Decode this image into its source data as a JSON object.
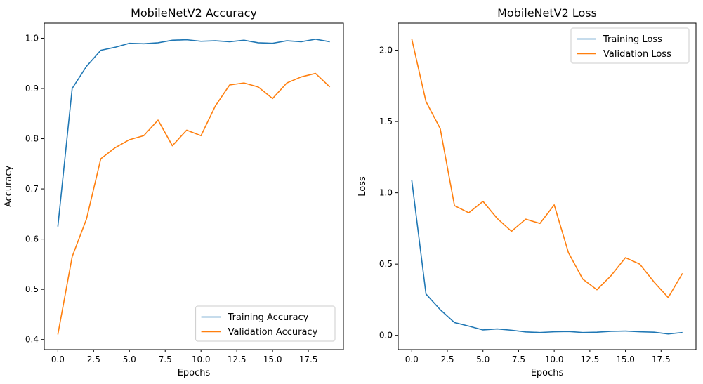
{
  "chart_data": [
    {
      "type": "line",
      "title": "MobileNetV2 Accuracy",
      "xlabel": "Epochs",
      "ylabel": "Accuracy",
      "xlim": [
        -0.95,
        19.95
      ],
      "ylim": [
        0.38,
        1.03
      ],
      "xticks": [
        0,
        2.5,
        5,
        7.5,
        10,
        12.5,
        15,
        17.5
      ],
      "xtick_labels": [
        "0.0",
        "2.5",
        "5.0",
        "7.5",
        "10.0",
        "12.5",
        "15.0",
        "17.5"
      ],
      "yticks": [
        0.4,
        0.5,
        0.6,
        0.7,
        0.8,
        0.9,
        1.0
      ],
      "ytick_labels": [
        "0.4",
        "0.5",
        "0.6",
        "0.7",
        "0.8",
        "0.9",
        "1.0"
      ],
      "legend_position": "lower right",
      "x": [
        0,
        1,
        2,
        3,
        4,
        5,
        6,
        7,
        8,
        9,
        10,
        11,
        12,
        13,
        14,
        15,
        16,
        17,
        18,
        19
      ],
      "series": [
        {
          "name": "Training Accuracy",
          "color": "#1f77b4",
          "values": [
            0.625,
            0.9,
            0.944,
            0.976,
            0.982,
            0.99,
            0.989,
            0.991,
            0.996,
            0.997,
            0.994,
            0.995,
            0.993,
            0.996,
            0.991,
            0.99,
            0.995,
            0.993,
            0.998,
            0.993
          ]
        },
        {
          "name": "Validation Accuracy",
          "color": "#ff7f0e",
          "values": [
            0.41,
            0.565,
            0.64,
            0.76,
            0.782,
            0.798,
            0.806,
            0.837,
            0.786,
            0.817,
            0.806,
            0.865,
            0.907,
            0.911,
            0.903,
            0.88,
            0.911,
            0.923,
            0.93,
            0.903
          ]
        }
      ]
    },
    {
      "type": "line",
      "title": "MobileNetV2 Loss",
      "xlabel": "Epochs",
      "ylabel": "Loss",
      "xlim": [
        -0.95,
        19.95
      ],
      "ylim": [
        -0.1,
        2.19
      ],
      "xticks": [
        0,
        2.5,
        5,
        7.5,
        10,
        12.5,
        15,
        17.5
      ],
      "xtick_labels": [
        "0.0",
        "2.5",
        "5.0",
        "7.5",
        "10.0",
        "12.5",
        "15.0",
        "17.5"
      ],
      "yticks": [
        0,
        0.5,
        1.0,
        1.5,
        2.0
      ],
      "ytick_labels": [
        "0.0",
        "0.5",
        "1.0",
        "1.5",
        "2.0"
      ],
      "legend_position": "upper right",
      "x": [
        0,
        1,
        2,
        3,
        4,
        5,
        6,
        7,
        8,
        9,
        10,
        11,
        12,
        13,
        14,
        15,
        16,
        17,
        18,
        19
      ],
      "series": [
        {
          "name": "Training Loss",
          "color": "#1f77b4",
          "values": [
            1.09,
            0.29,
            0.18,
            0.09,
            0.065,
            0.038,
            0.045,
            0.036,
            0.024,
            0.02,
            0.025,
            0.027,
            0.02,
            0.022,
            0.028,
            0.03,
            0.025,
            0.022,
            0.01,
            0.02
          ]
        },
        {
          "name": "Validation Loss",
          "color": "#ff7f0e",
          "values": [
            2.08,
            1.64,
            1.45,
            0.91,
            0.86,
            0.94,
            0.82,
            0.73,
            0.815,
            0.785,
            0.915,
            0.58,
            0.395,
            0.32,
            0.42,
            0.545,
            0.5,
            0.375,
            0.265,
            0.435
          ]
        }
      ]
    }
  ]
}
